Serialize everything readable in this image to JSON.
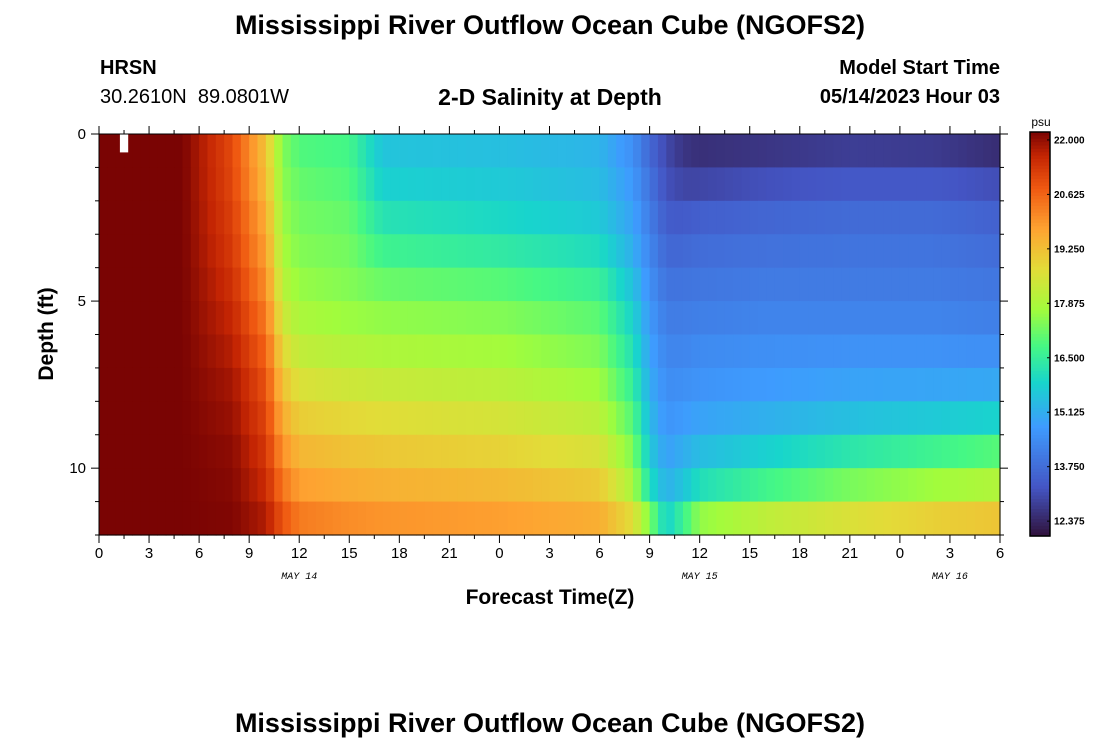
{
  "header": {
    "title": "Mississippi River Outflow Ocean Cube (NGOFS2)",
    "station": "HRSN",
    "coords": "30.2610N  89.0801W",
    "subtitle": "2-D Salinity at Depth",
    "start_label": "Model Start Time",
    "start_value": "05/14/2023 Hour 03"
  },
  "footer": {
    "title": "Mississippi River Outflow Ocean Cube (NGOFS2)"
  },
  "chart_data": {
    "type": "heatmap",
    "title": "2-D Salinity at Depth",
    "xlabel": "Forecast Time(Z)",
    "ylabel": "Depth (ft)",
    "x_range_hours": [
      0,
      54
    ],
    "x_ticks": [
      "0",
      "3",
      "6",
      "9",
      "12",
      "15",
      "18",
      "21",
      "0",
      "3",
      "6",
      "9",
      "12",
      "15",
      "18",
      "21",
      "0",
      "3",
      "6"
    ],
    "x_tick_hours": [
      0,
      3,
      6,
      9,
      12,
      15,
      18,
      21,
      24,
      27,
      30,
      33,
      36,
      39,
      42,
      45,
      48,
      51,
      54
    ],
    "date_labels": [
      {
        "label": "MAY 14",
        "hour": 12
      },
      {
        "label": "MAY 15",
        "hour": 36
      },
      {
        "label": "MAY 16",
        "hour": 51
      }
    ],
    "y_range_ft": [
      0,
      12
    ],
    "y_ticks": [
      "0",
      "5",
      "10"
    ],
    "y_tick_values": [
      0,
      5,
      10
    ],
    "colorbar": {
      "unit": "psu",
      "min": 12.0,
      "max": 22.2,
      "labels": [
        "22.000",
        "20.625",
        "19.250",
        "17.875",
        "16.500",
        "15.125",
        "13.750",
        "12.375"
      ],
      "label_values": [
        22.0,
        20.625,
        19.25,
        17.875,
        16.5,
        15.125,
        13.75,
        12.375
      ]
    },
    "depth_levels_ft": [
      0,
      1,
      2,
      3,
      4,
      5,
      6,
      7,
      8,
      9,
      10,
      11,
      12
    ],
    "time_nodes_hours": [
      0,
      5,
      8,
      10,
      11,
      12,
      15,
      17,
      24,
      30,
      32,
      33,
      34,
      35,
      36,
      40,
      45,
      50,
      54
    ],
    "salinity_psu": [
      [
        22.2,
        22.2,
        21.0,
        19.2,
        17.4,
        16.8,
        16.7,
        15.5,
        15.4,
        15.2,
        14.4,
        13.5,
        13.0,
        12.6,
        12.5,
        12.5,
        12.6,
        12.5,
        12.2
      ],
      [
        22.2,
        22.2,
        21.0,
        19.2,
        17.4,
        17.0,
        16.8,
        15.6,
        15.5,
        15.3,
        14.6,
        13.8,
        13.0,
        12.7,
        12.6,
        12.8,
        13.0,
        13.0,
        12.8
      ],
      [
        22.2,
        22.2,
        21.1,
        19.5,
        17.6,
        17.2,
        17.0,
        16.0,
        15.8,
        15.5,
        14.8,
        14.0,
        13.3,
        13.2,
        13.3,
        13.5,
        13.6,
        13.6,
        13.4
      ],
      [
        22.2,
        22.2,
        21.2,
        19.7,
        17.7,
        17.3,
        17.2,
        16.4,
        16.1,
        15.8,
        15.0,
        14.2,
        13.5,
        13.5,
        13.6,
        13.7,
        13.8,
        13.8,
        13.6
      ],
      [
        22.2,
        22.2,
        21.3,
        19.9,
        17.9,
        17.5,
        17.3,
        16.9,
        16.7,
        16.3,
        15.3,
        14.4,
        13.8,
        13.8,
        13.9,
        14.0,
        14.0,
        14.0,
        13.9
      ],
      [
        22.2,
        22.2,
        21.5,
        20.2,
        18.2,
        17.7,
        17.5,
        17.4,
        17.2,
        16.8,
        15.7,
        14.6,
        14.0,
        14.0,
        14.0,
        14.1,
        14.1,
        14.1,
        14.0
      ],
      [
        22.2,
        22.2,
        21.6,
        20.5,
        18.6,
        18.0,
        17.8,
        17.7,
        17.6,
        17.2,
        16.0,
        14.8,
        14.2,
        14.2,
        14.3,
        14.4,
        14.4,
        14.4,
        14.3
      ],
      [
        22.2,
        22.2,
        21.8,
        20.8,
        19.0,
        18.4,
        18.2,
        18.1,
        17.9,
        17.5,
        16.3,
        15.0,
        14.4,
        14.4,
        14.5,
        14.6,
        14.7,
        14.7,
        14.7
      ],
      [
        22.2,
        22.2,
        21.9,
        21.0,
        19.4,
        18.8,
        18.6,
        18.5,
        18.3,
        17.9,
        16.7,
        15.2,
        14.5,
        14.6,
        14.7,
        14.9,
        15.1,
        15.2,
        15.3
      ],
      [
        22.2,
        22.2,
        22.0,
        21.2,
        19.8,
        19.2,
        19.0,
        18.9,
        18.7,
        18.3,
        17.1,
        15.5,
        14.7,
        14.9,
        15.1,
        15.4,
        15.8,
        16.1,
        16.4
      ],
      [
        22.2,
        22.2,
        22.1,
        21.4,
        20.2,
        19.6,
        19.4,
        19.3,
        19.1,
        18.8,
        17.6,
        15.8,
        15.0,
        15.3,
        15.7,
        16.2,
        16.8,
        17.2,
        17.5
      ],
      [
        22.2,
        22.2,
        22.1,
        21.6,
        20.6,
        20.0,
        19.8,
        19.7,
        19.6,
        19.3,
        18.1,
        16.4,
        15.3,
        15.8,
        16.5,
        17.2,
        17.8,
        18.2,
        18.4
      ],
      [
        22.2,
        22.2,
        22.2,
        21.9,
        21.1,
        20.6,
        20.3,
        20.2,
        20.0,
        19.8,
        19.3,
        18.3,
        16.3,
        17.4,
        18.6,
        19.1,
        19.4,
        19.7,
        19.9
      ]
    ]
  }
}
